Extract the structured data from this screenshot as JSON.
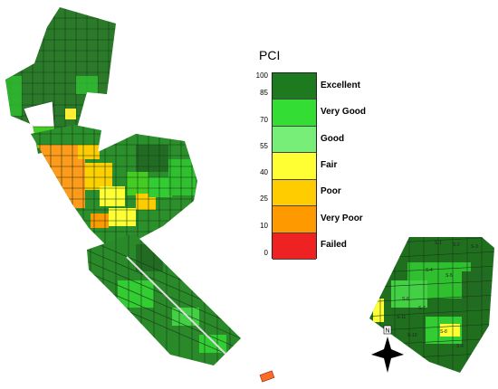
{
  "legend": {
    "title": "PCI",
    "ticks": [
      "100",
      "85",
      "70",
      "55",
      "40",
      "25",
      "10",
      "0"
    ],
    "classes": [
      {
        "label": "Excellent",
        "color": "#1e7a1e",
        "range": [
          85,
          100
        ]
      },
      {
        "label": "Very Good",
        "color": "#33dd33",
        "range": [
          70,
          85
        ]
      },
      {
        "label": "Good",
        "color": "#77ee77",
        "range": [
          55,
          70
        ]
      },
      {
        "label": "Fair",
        "color": "#ffff33",
        "range": [
          40,
          55
        ]
      },
      {
        "label": "Poor",
        "color": "#ffcc00",
        "range": [
          25,
          40
        ]
      },
      {
        "label": "Very Poor",
        "color": "#ff9900",
        "range": [
          10,
          25
        ]
      },
      {
        "label": "Failed",
        "color": "#ee2222",
        "range": [
          0,
          10
        ]
      }
    ]
  },
  "map": {
    "section_labels": [
      "S-1",
      "S-2",
      "S-3",
      "S-4",
      "S-5",
      "S-6",
      "S-7",
      "S-8",
      "S-9",
      "S-10",
      "S-11"
    ],
    "north_arrow_letter": "N"
  }
}
